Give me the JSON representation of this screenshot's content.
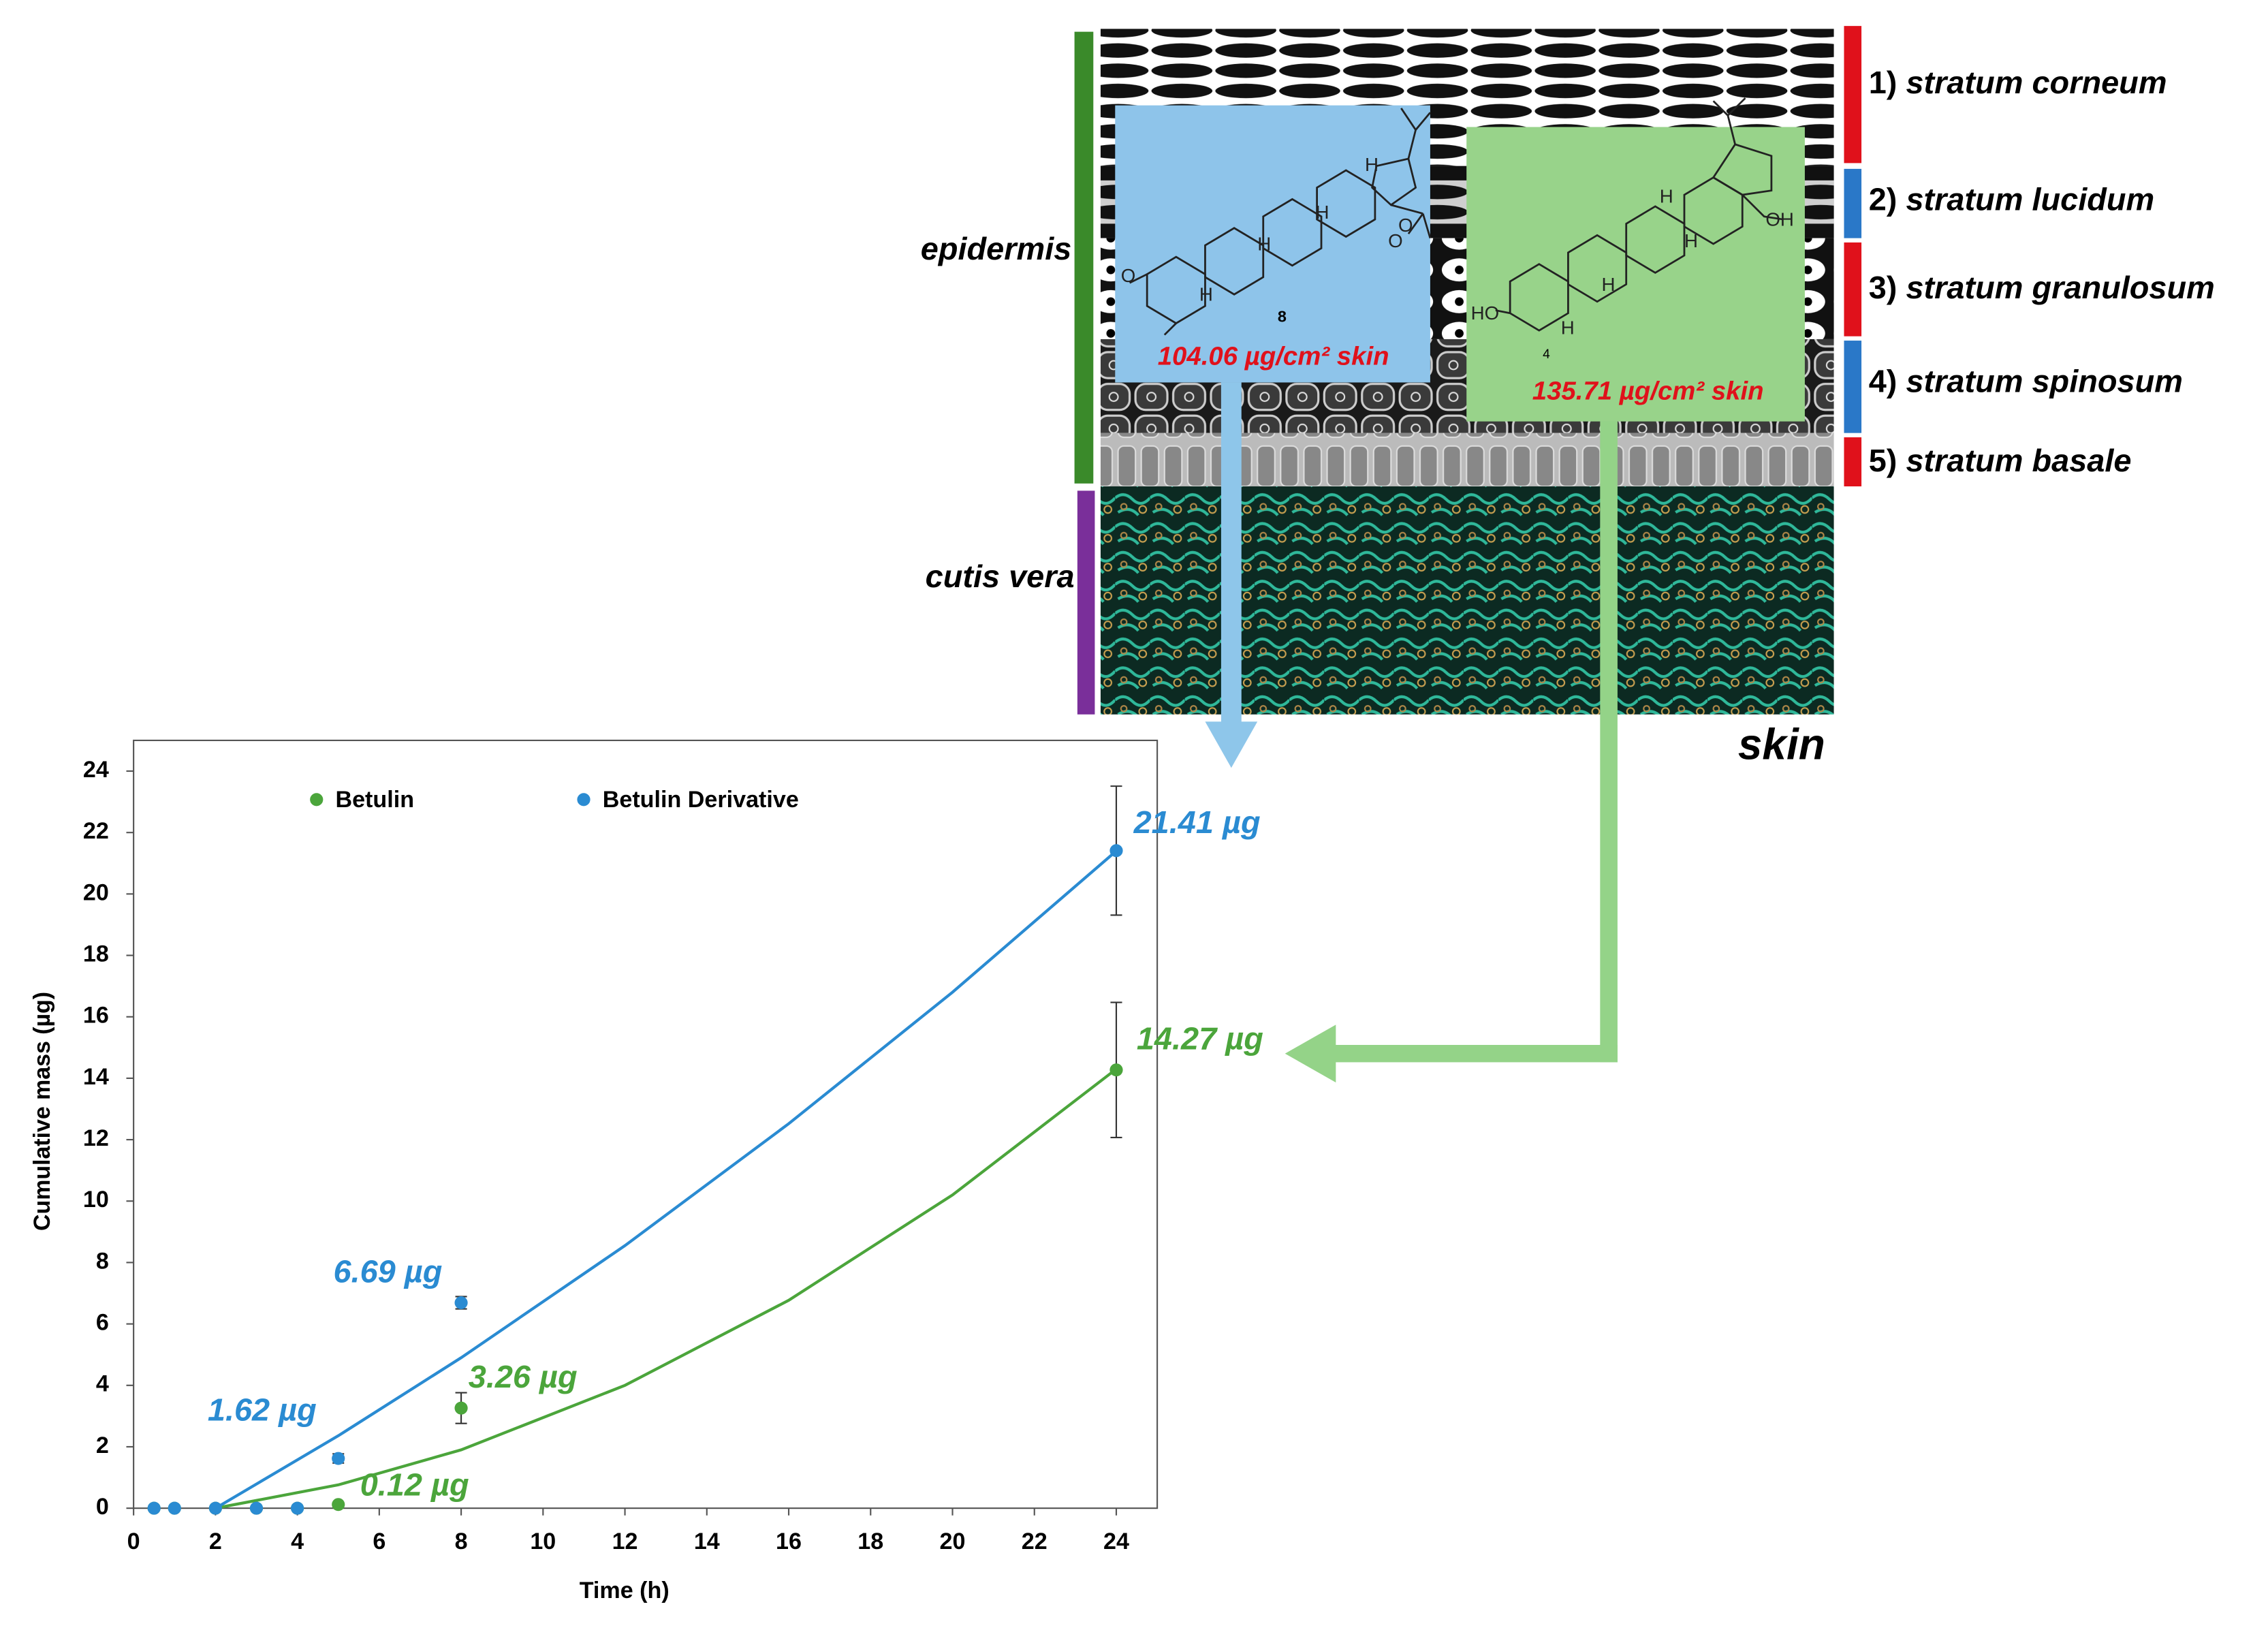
{
  "chart_data": {
    "type": "scatter",
    "x_label": "Time (h)",
    "y_label": "Cumulative mass (µg)",
    "xlim": [
      0,
      25
    ],
    "xticks": [
      0,
      2,
      4,
      6,
      8,
      10,
      12,
      14,
      16,
      18,
      20,
      22,
      24
    ],
    "ylim": [
      0,
      25
    ],
    "yticks": [
      0,
      2,
      4,
      6,
      8,
      10,
      12,
      14,
      16,
      18,
      20,
      22,
      24
    ],
    "legend": "top",
    "series": [
      {
        "name": "Betulin",
        "color": "#4ba53b",
        "x": [
          0.5,
          1,
          2,
          3,
          4,
          5,
          8,
          24
        ],
        "values": [
          0,
          0,
          0,
          0,
          0,
          0.12,
          3.26,
          14.27
        ],
        "errors": [
          null,
          null,
          null,
          null,
          null,
          null,
          0.5,
          2.2
        ],
        "value_labels": [
          null,
          null,
          null,
          null,
          null,
          "0.12 µg",
          "3.26 µg",
          "14.27 µg"
        ],
        "fit_x": [
          2,
          5,
          8,
          12,
          16,
          20,
          24
        ],
        "fit_values": [
          0,
          0.76,
          1.9,
          4.0,
          6.77,
          10.2,
          14.3
        ]
      },
      {
        "name": "Betulin Derivative",
        "color": "#2a8bd2",
        "x": [
          0.5,
          1,
          2,
          3,
          4,
          5,
          8,
          24
        ],
        "values": [
          0,
          0,
          0,
          0,
          0,
          1.62,
          6.69,
          21.41
        ],
        "errors": [
          null,
          null,
          null,
          null,
          null,
          0.15,
          0.2,
          2.1
        ],
        "value_labels": [
          null,
          null,
          null,
          null,
          null,
          "1.62 µg",
          "6.69 µg",
          "21.41 µg"
        ],
        "fit_x": [
          2,
          5,
          8,
          12,
          16,
          20,
          24
        ],
        "fit_values": [
          0,
          2.36,
          4.9,
          8.55,
          12.52,
          16.8,
          21.4
        ]
      }
    ]
  },
  "diagram": {
    "regions": [
      "epidermis",
      "cutis vera"
    ],
    "layers": [
      {
        "number": "1)",
        "name": "stratum corneum"
      },
      {
        "number": "2)",
        "name": "stratum lucidum"
      },
      {
        "number": "3)",
        "name": "stratum granulosum"
      },
      {
        "number": "4)",
        "name": "stratum spinosum"
      },
      {
        "number": "5)",
        "name": "stratum basale"
      }
    ],
    "skin_label": "skin",
    "compounds": [
      {
        "number": "8",
        "amount": "104.06 µg/cm² skin",
        "atoms": [
          "O",
          "H",
          "H",
          "H",
          "H",
          "O",
          "O"
        ]
      },
      {
        "number": "4",
        "amount": "135.71 µg/cm² skin",
        "atoms": [
          "HO",
          "H",
          "H",
          "H",
          "H",
          "OH"
        ]
      }
    ]
  }
}
